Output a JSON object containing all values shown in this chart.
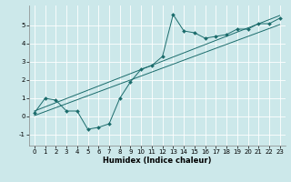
{
  "title": "",
  "xlabel": "Humidex (Indice chaleur)",
  "ylabel": "",
  "bg_color": "#cce8ea",
  "line_color": "#1a6b6b",
  "grid_color": "#ffffff",
  "line1_x": [
    0,
    1,
    2,
    3,
    4,
    5,
    6,
    7,
    8,
    9,
    10,
    11,
    12,
    13,
    14,
    15,
    16,
    17,
    18,
    19,
    20,
    21,
    22,
    23
  ],
  "line1_y": [
    0.2,
    1.0,
    0.9,
    0.3,
    0.3,
    -0.7,
    -0.6,
    -0.4,
    1.0,
    1.9,
    2.6,
    2.8,
    3.3,
    5.6,
    4.7,
    4.6,
    4.3,
    4.4,
    4.5,
    4.8,
    4.8,
    5.1,
    5.1,
    5.4
  ],
  "line2_x": [
    0,
    23
  ],
  "line2_y": [
    0.05,
    5.05
  ],
  "line3_x": [
    0,
    23
  ],
  "line3_y": [
    0.3,
    5.55
  ],
  "xlim": [
    -0.5,
    23.5
  ],
  "ylim": [
    -1.6,
    6.1
  ],
  "xticks": [
    0,
    1,
    2,
    3,
    4,
    5,
    6,
    7,
    8,
    9,
    10,
    11,
    12,
    13,
    14,
    15,
    16,
    17,
    18,
    19,
    20,
    21,
    22,
    23
  ],
  "yticks": [
    -1,
    0,
    1,
    2,
    3,
    4,
    5
  ],
  "tick_fontsize": 5.0,
  "xlabel_fontsize": 6.0
}
